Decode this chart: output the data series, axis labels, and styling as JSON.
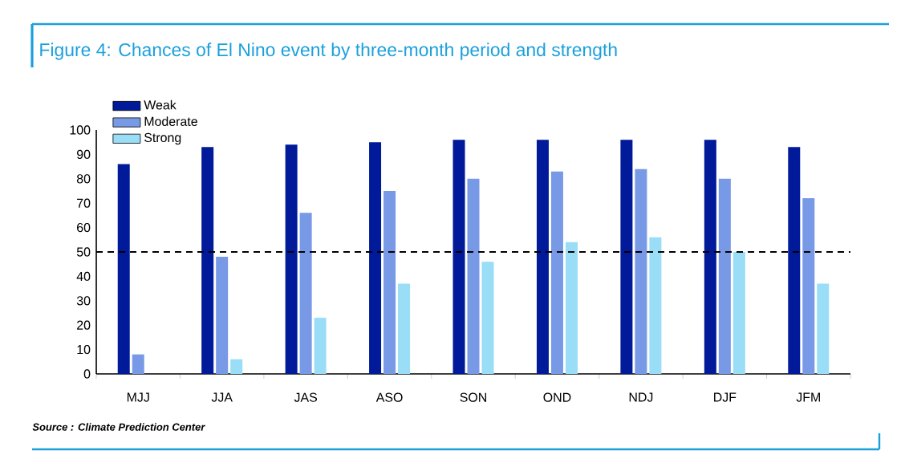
{
  "chart_data": {
    "type": "bar",
    "title": "Figure 4: Chances of El Nino event by three-month period and strength",
    "categories": [
      "MJJ",
      "JJA",
      "JAS",
      "ASO",
      "SON",
      "OND",
      "NDJ",
      "DJF",
      "JFM"
    ],
    "series": [
      {
        "name": "Weak",
        "color": "#001a99",
        "values": [
          86,
          93,
          94,
          95,
          96,
          96,
          96,
          96,
          93
        ]
      },
      {
        "name": "Moderate",
        "color": "#7799e6",
        "values": [
          8,
          48,
          66,
          75,
          80,
          83,
          84,
          80,
          72
        ]
      },
      {
        "name": "Strong",
        "color": "#99ddf7",
        "values": [
          0,
          6,
          23,
          37,
          46,
          54,
          56,
          50,
          37
        ]
      }
    ],
    "ylim": [
      0,
      100
    ],
    "yticks": [
      0,
      10,
      20,
      30,
      40,
      50,
      60,
      70,
      80,
      90,
      100
    ],
    "ref_lines": [
      {
        "axis": "y",
        "value": 50,
        "line_style": "dashed",
        "color": "#000000"
      }
    ],
    "legend": "top left",
    "annotations": [
      "Source : Climate Prediction Center"
    ]
  }
}
